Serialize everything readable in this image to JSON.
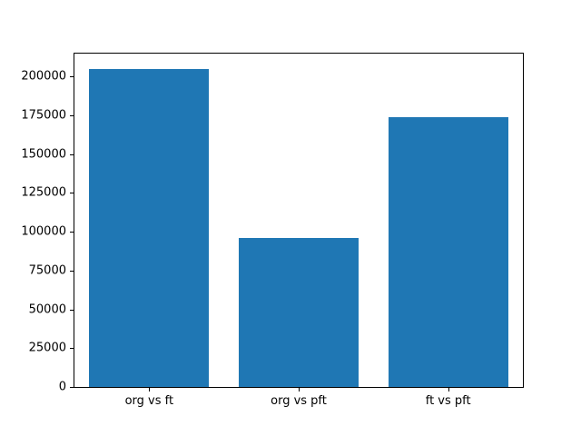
{
  "chart_data": {
    "type": "bar",
    "title": "",
    "xlabel": "",
    "ylabel": "",
    "categories": [
      "org vs ft",
      "org vs pft",
      "ft vs pft"
    ],
    "values": [
      204500,
      95700,
      173500
    ],
    "yticks": [
      0,
      25000,
      50000,
      75000,
      100000,
      125000,
      150000,
      175000,
      200000
    ],
    "ylim": [
      0,
      214700
    ],
    "bar_width_fraction": 0.8,
    "grid": false,
    "legend": null,
    "bar_color": "#1f77b4",
    "axis_color": "#000000",
    "background_color": "#ffffff"
  }
}
